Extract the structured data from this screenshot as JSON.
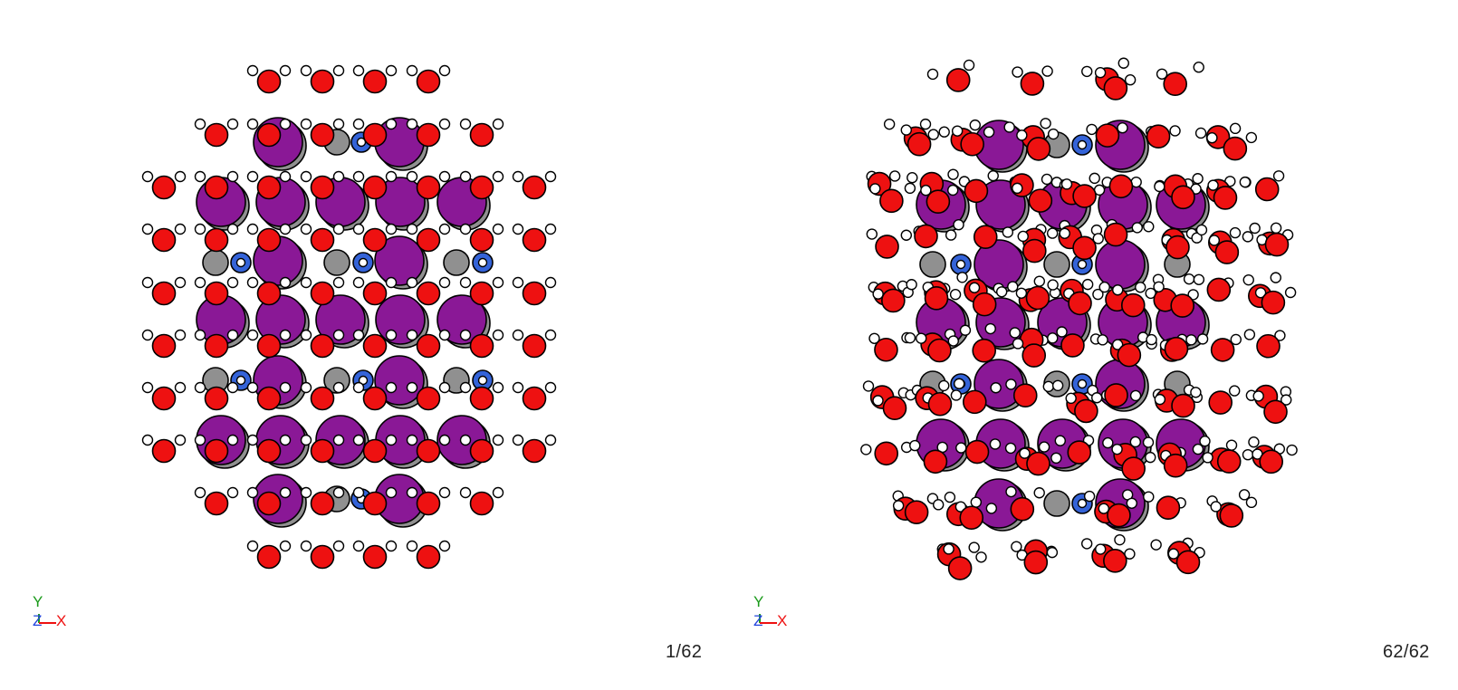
{
  "panels": [
    {
      "id": "initial",
      "frame_counter": "1/62",
      "axes": {
        "y_label": "Y",
        "z_label": "Z",
        "x_label": "X"
      }
    },
    {
      "id": "final",
      "frame_counter": "62/62",
      "axes": {
        "y_label": "Y",
        "z_label": "Z",
        "x_label": "X"
      }
    }
  ],
  "colors": {
    "purple_atom": "#8a1896",
    "gray_atom": "#909090",
    "blue_atom": "#3463d8",
    "oxygen": "#ee1111",
    "hydrogen": "#ffffff",
    "outline": "#000000",
    "axis_y": "#1a9a1a",
    "axis_z": "#2244dd",
    "axis_x": "#ee1111"
  }
}
